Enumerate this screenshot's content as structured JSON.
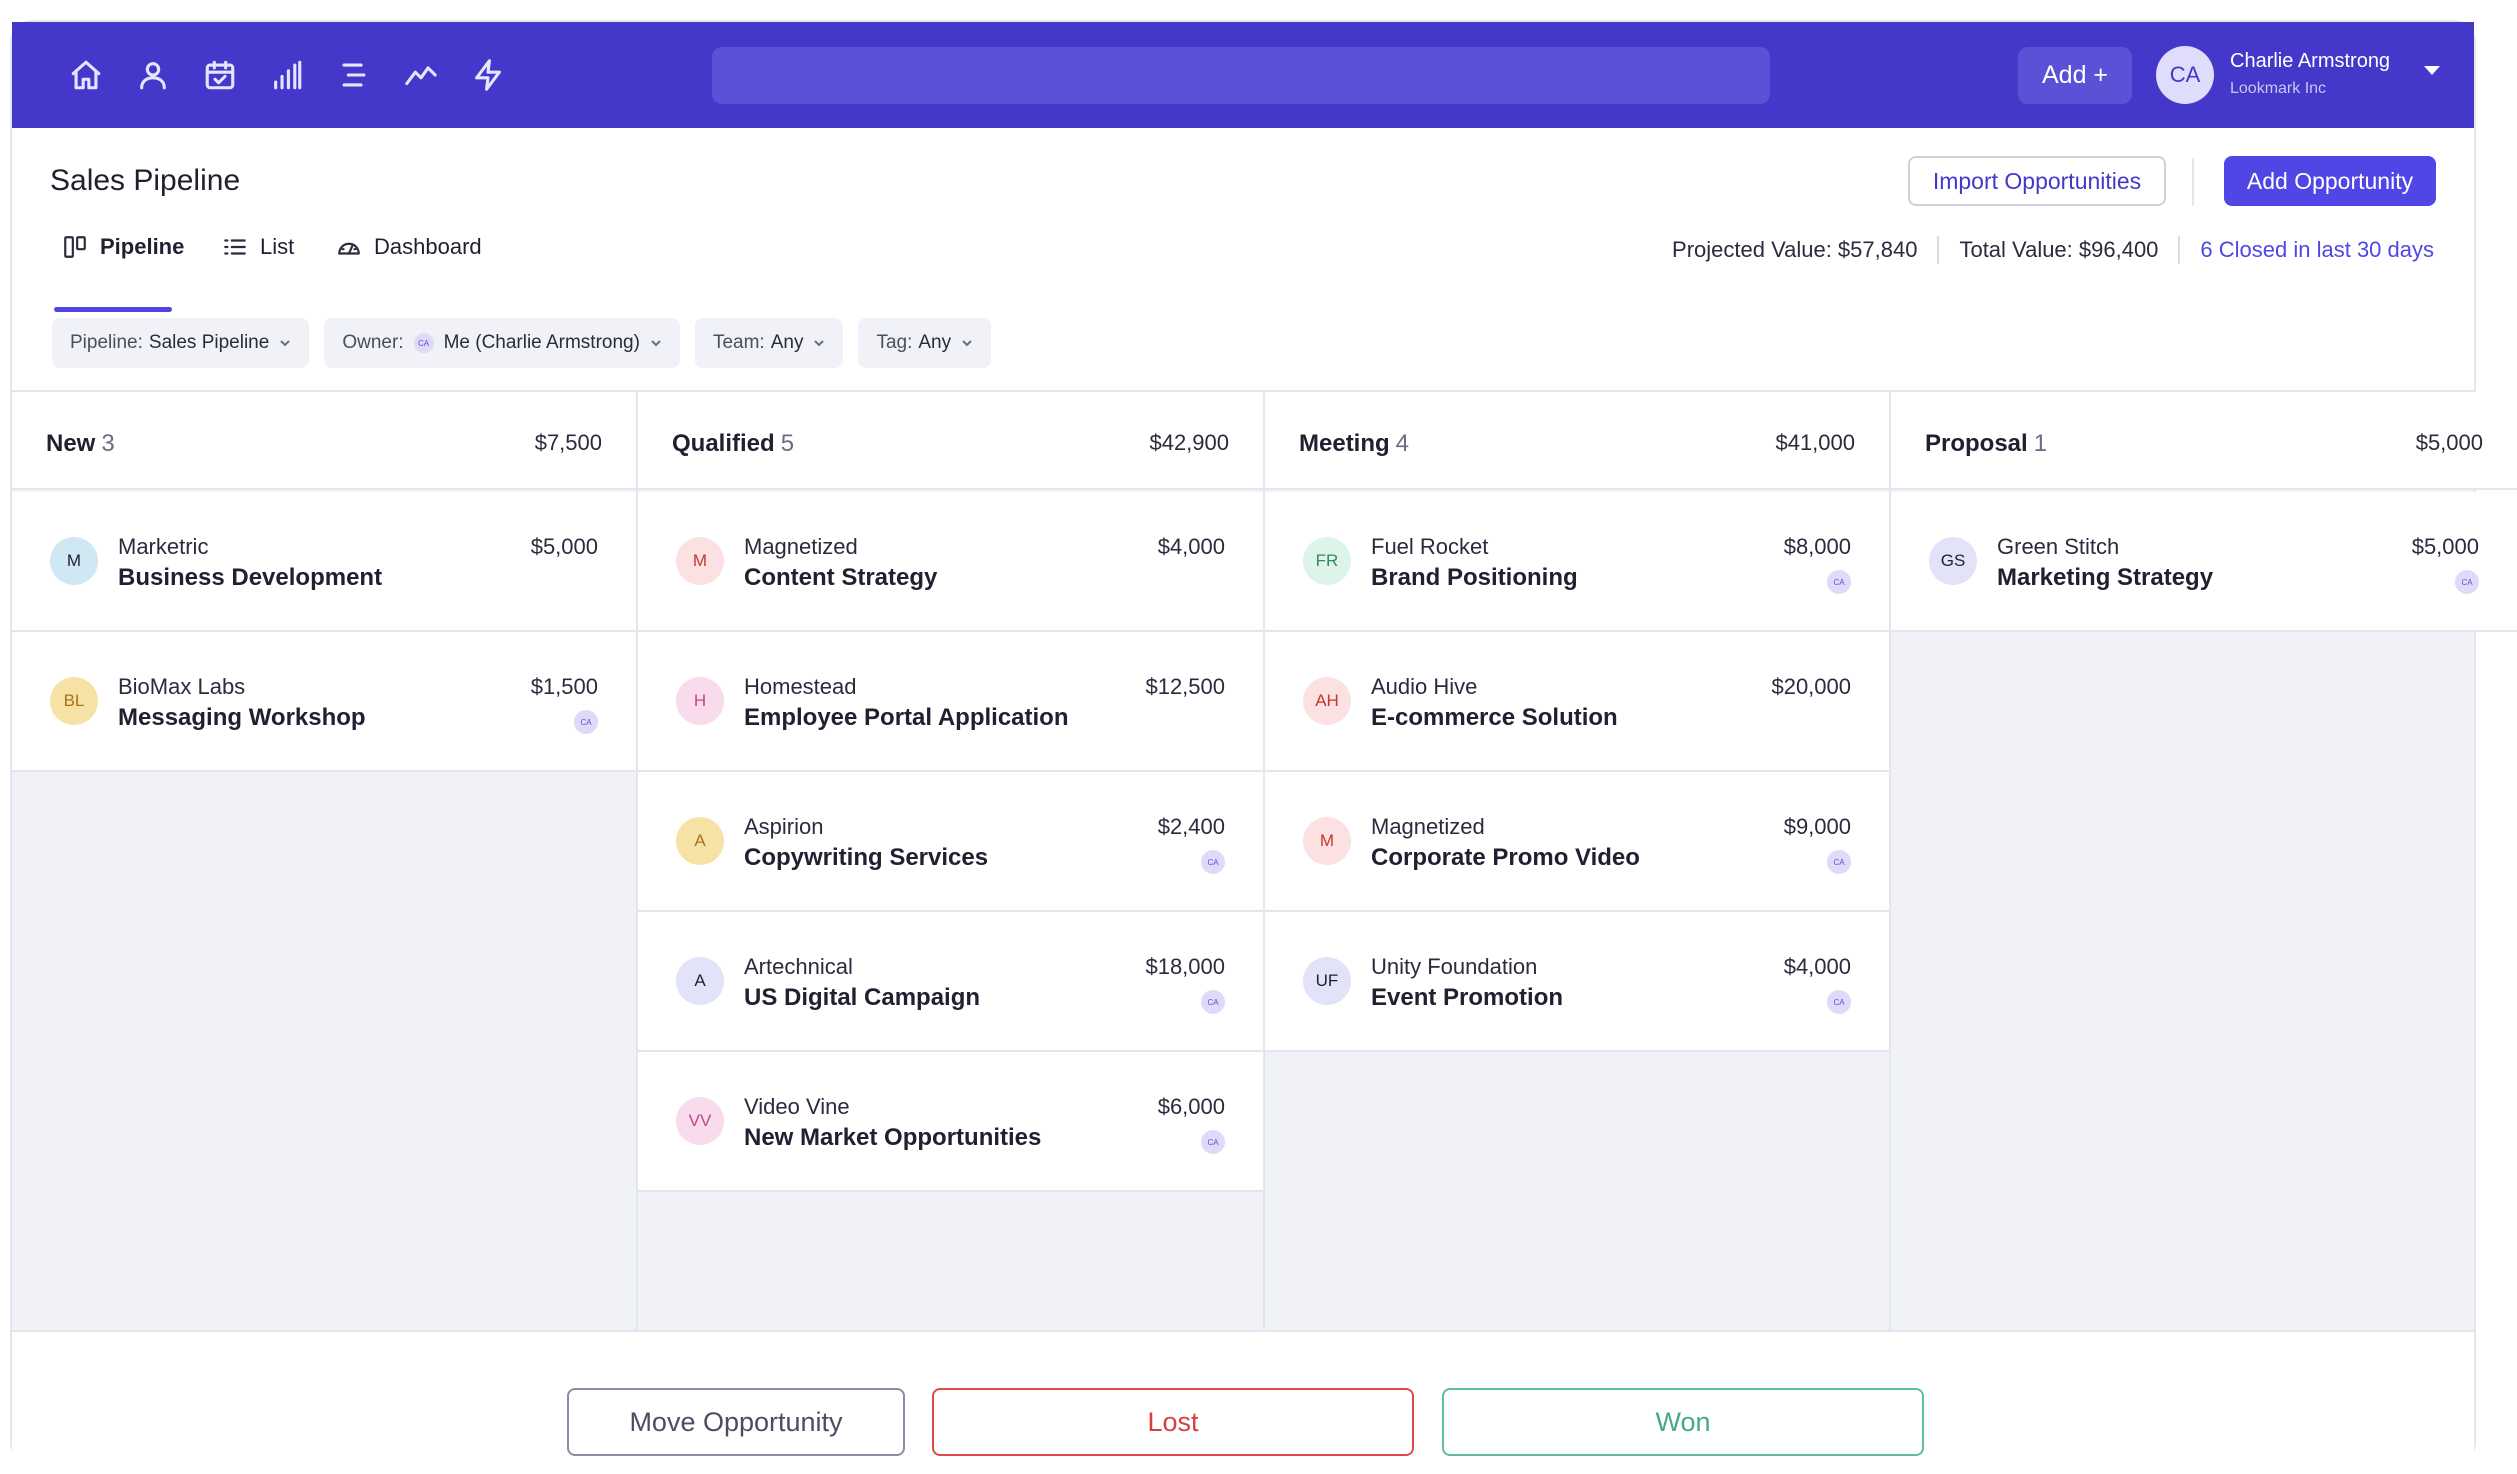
{
  "topbar": {
    "nav_icons": [
      "home-icon",
      "user-icon",
      "calendar-check-icon",
      "bar-chart-icon",
      "menu-lines-icon",
      "trend-line-icon",
      "lightning-icon"
    ],
    "search": {
      "value": "",
      "placeholder": ""
    },
    "add_label": "Add +",
    "user": {
      "initials": "CA",
      "name": "Charlie Armstrong",
      "company": "Lookmark Inc"
    }
  },
  "header": {
    "title": "Sales Pipeline",
    "import_label": "Import Opportunities",
    "add_opportunity_label": "Add Opportunity"
  },
  "tabs": [
    {
      "label": "Pipeline",
      "icon": "kanban-icon",
      "active": true
    },
    {
      "label": "List",
      "icon": "list-icon",
      "active": false
    },
    {
      "label": "Dashboard",
      "icon": "gauge-icon",
      "active": false
    }
  ],
  "stats": {
    "projected": "Projected Value: $57,840",
    "total": "Total Value: $96,400",
    "closed": "6 Closed in last 30 days"
  },
  "filters": {
    "pipeline": {
      "label": "Pipeline:",
      "value": "Sales Pipeline"
    },
    "owner": {
      "label": "Owner:",
      "avatar": "CA",
      "value": "Me (Charlie Armstrong)"
    },
    "team": {
      "label": "Team:",
      "value": "Any"
    },
    "tag": {
      "label": "Tag:",
      "value": "Any"
    }
  },
  "columns": [
    {
      "name": "New",
      "count": "3",
      "total": "$7,500",
      "cards": [
        {
          "initials": "M",
          "company": "Marketric",
          "title": "Business Development",
          "amount": "$5,000",
          "owner": "",
          "color": "#cfe8f3",
          "text_color": "#1f2030"
        },
        {
          "initials": "BL",
          "company": "BioMax Labs",
          "title": "Messaging Workshop",
          "amount": "$1,500",
          "owner": "CA",
          "color": "#f7e2a6",
          "text_color": "#a7731b"
        }
      ]
    },
    {
      "name": "Qualified",
      "count": "5",
      "total": "$42,900",
      "cards": [
        {
          "initials": "M",
          "company": "Magnetized",
          "title": "Content Strategy",
          "amount": "$4,000",
          "owner": "",
          "color": "#fbe1e1",
          "text_color": "#c0392b"
        },
        {
          "initials": "H",
          "company": "Homestead",
          "title": "Employee Portal Application",
          "amount": "$12,500",
          "owner": "",
          "color": "#f8dcec",
          "text_color": "#c2478a"
        },
        {
          "initials": "A",
          "company": "Aspirion",
          "title": "Copywriting Services",
          "amount": "$2,400",
          "owner": "CA",
          "color": "#f7e2a6",
          "text_color": "#a7731b"
        },
        {
          "initials": "A",
          "company": "Artechnical",
          "title": "US Digital Campaign",
          "amount": "$18,000",
          "owner": "CA",
          "color": "#e2e2f8",
          "text_color": "#1f2030"
        },
        {
          "initials": "VV",
          "company": "Video Vine",
          "title": "New Market Opportunities",
          "amount": "$6,000",
          "owner": "CA",
          "color": "#f8dcec",
          "text_color": "#c2478a"
        }
      ]
    },
    {
      "name": "Meeting",
      "count": "4",
      "total": "$41,000",
      "cards": [
        {
          "initials": "FR",
          "company": "Fuel Rocket",
          "title": "Brand Positioning",
          "amount": "$8,000",
          "owner": "CA",
          "color": "#dcf4ea",
          "text_color": "#2f8a66"
        },
        {
          "initials": "AH",
          "company": "Audio Hive",
          "title": "E-commerce Solution",
          "amount": "$20,000",
          "owner": "",
          "color": "#fbe1e1",
          "text_color": "#c0392b"
        },
        {
          "initials": "M",
          "company": "Magnetized",
          "title": "Corporate Promo Video",
          "amount": "$9,000",
          "owner": "CA",
          "color": "#fbe1e1",
          "text_color": "#c0392b"
        },
        {
          "initials": "UF",
          "company": "Unity Foundation",
          "title": "Event Promotion",
          "amount": "$4,000",
          "owner": "CA",
          "color": "#e2e2f8",
          "text_color": "#1f2030"
        }
      ]
    },
    {
      "name": "Proposal",
      "count": "1",
      "total": "$5,000",
      "cards": [
        {
          "initials": "GS",
          "company": "Green Stitch",
          "title": "Marketing Strategy",
          "amount": "$5,000",
          "owner": "CA",
          "color": "#e2e2f8",
          "text_color": "#1f2030"
        }
      ]
    }
  ],
  "footer": {
    "move_label": "Move Opportunity",
    "lost_label": "Lost",
    "won_label": "Won"
  },
  "colors": {
    "primary": "#4338ca",
    "accent": "#4f46e5",
    "lost": "#d53f3f",
    "won": "#45a984"
  }
}
